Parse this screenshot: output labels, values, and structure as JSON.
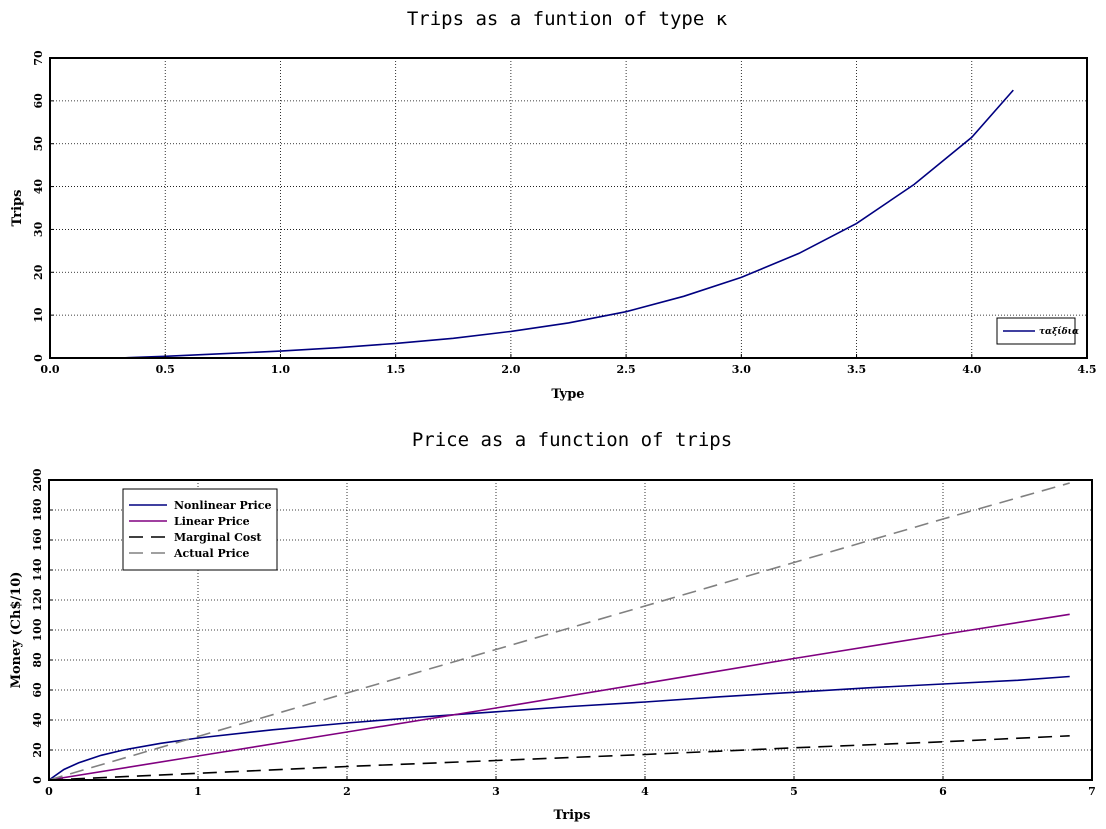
{
  "chart_data": [
    {
      "type": "line",
      "title": "Trips as a funtion of type κ",
      "xlabel": "Type",
      "ylabel": "Trips",
      "xlim": [
        0.0,
        4.5
      ],
      "ylim": [
        0,
        70
      ],
      "xticks": [
        "0.0",
        "0.5",
        "1.0",
        "1.5",
        "2.0",
        "2.5",
        "3.0",
        "3.5",
        "4.0",
        "4.5"
      ],
      "yticks": [
        "0",
        "10",
        "20",
        "30",
        "40",
        "50",
        "60",
        "70"
      ],
      "grid": true,
      "legend_position": "bottom-right",
      "series": [
        {
          "name": "ταξίδια",
          "color": "#000080",
          "style": "solid",
          "x": [
            0.3,
            0.5,
            0.75,
            1.0,
            1.25,
            1.5,
            1.75,
            2.0,
            2.25,
            2.5,
            2.75,
            3.0,
            3.25,
            3.5,
            3.75,
            4.0,
            4.18
          ],
          "y": [
            0.0,
            0.4,
            1.0,
            1.6,
            2.4,
            3.4,
            4.6,
            6.2,
            8.2,
            10.8,
            14.4,
            18.8,
            24.4,
            31.4,
            40.5,
            51.5,
            62.5
          ]
        }
      ]
    },
    {
      "type": "line",
      "title": "Price as a function of trips",
      "xlabel": "Trips",
      "ylabel": "Money (Ch$/10)",
      "xlim": [
        0,
        7
      ],
      "ylim": [
        0,
        200
      ],
      "xticks": [
        "0",
        "1",
        "2",
        "3",
        "4",
        "5",
        "6",
        "7"
      ],
      "yticks": [
        "0",
        "20",
        "40",
        "60",
        "80",
        "100",
        "120",
        "140",
        "160",
        "180",
        "200"
      ],
      "grid": true,
      "legend_position": "top-left",
      "series": [
        {
          "name": "Nonlinear Price",
          "color": "#000080",
          "style": "solid",
          "x": [
            0,
            0.1,
            0.2,
            0.35,
            0.5,
            0.75,
            1.0,
            1.5,
            2.0,
            2.5,
            3.0,
            3.5,
            4.0,
            4.5,
            5.0,
            5.5,
            6.0,
            6.5,
            6.85
          ],
          "y": [
            0,
            7,
            11.5,
            16.5,
            20,
            24.5,
            28,
            33.5,
            38,
            42,
            45.5,
            49,
            52,
            55.5,
            58.5,
            61.5,
            64,
            66.5,
            69
          ]
        },
        {
          "name": "Linear Price",
          "color": "#800080",
          "style": "solid",
          "x": [
            0,
            1,
            2,
            3,
            4,
            5,
            6,
            6.85
          ],
          "y": [
            0,
            16,
            32,
            48,
            64.5,
            81,
            97,
            110.5
          ]
        },
        {
          "name": "Marginal Cost",
          "color": "#000000",
          "style": "long-dash",
          "x": [
            0,
            1,
            2,
            3,
            4,
            5,
            6,
            6.85
          ],
          "y": [
            0,
            4.5,
            9,
            13,
            17,
            21.5,
            25.5,
            29.5
          ]
        },
        {
          "name": "Actual Price",
          "color": "#808080",
          "style": "long-dash",
          "x": [
            0,
            1,
            2,
            3,
            4,
            5,
            6,
            6.85
          ],
          "y": [
            0,
            29,
            58,
            87,
            116,
            145,
            174,
            198
          ]
        }
      ]
    }
  ]
}
